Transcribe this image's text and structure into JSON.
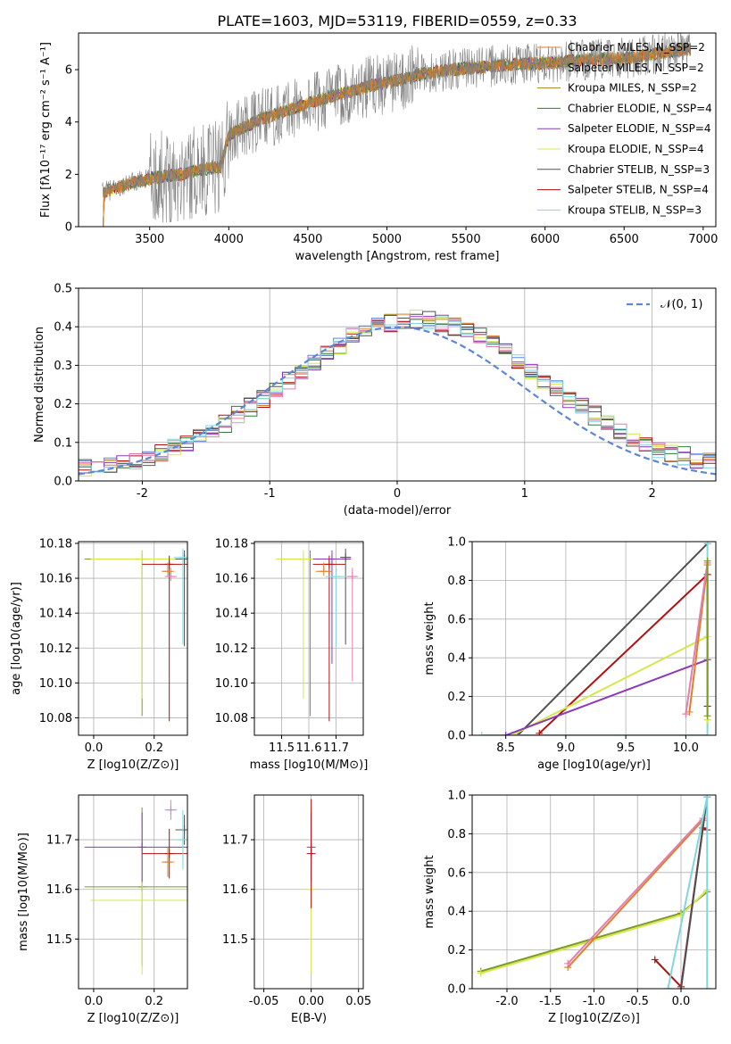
{
  "figure": {
    "title": "PLATE=1603, MJD=53119, FIBERID=0559, z=0.33"
  },
  "colors": {
    "grey": "#808080",
    "orange": "#e07f2a",
    "green_olive": "#7a9a2a",
    "dark_green": "#2e7d32",
    "purple": "#8a3ab9",
    "yellow": "#d4e84a",
    "dark_grey": "#505050",
    "red": "#b01010",
    "cyan": "#7fd6dc",
    "blue_dashed": "#5b87d6",
    "pink": "#e07fb0",
    "blue": "#5b87d6"
  },
  "chart_data": [
    {
      "id": "spectrum",
      "type": "line",
      "title": "PLATE=1603, MJD=53119, FIBERID=0559, z=0.33",
      "xlabel": "wavelength [Angstrom, rest frame]",
      "ylabel": "Flux [fλ10⁻¹⁷ erg cm⁻² s⁻¹ A⁻¹]",
      "xlim": [
        3050,
        7080
      ],
      "ylim": [
        0,
        7.4
      ],
      "xticks": [
        3500,
        4000,
        4500,
        5000,
        5500,
        6000,
        6500,
        7000
      ],
      "yticks": [
        0,
        2,
        4,
        6
      ],
      "grid": false,
      "legend_position": "top-right",
      "continuum_x": [
        3200,
        3400,
        3550,
        3700,
        3850,
        3950,
        4000,
        4200,
        4400,
        4600,
        4800,
        4900,
        5000,
        5200,
        5400,
        5600,
        5800,
        6000,
        6200,
        6400,
        6600,
        6800,
        6900
      ],
      "continuum_y": [
        1.3,
        1.7,
        1.9,
        2.0,
        2.2,
        2.3,
        3.5,
        4.1,
        4.5,
        4.9,
        5.2,
        5.4,
        5.5,
        5.8,
        6.0,
        6.1,
        6.2,
        6.25,
        6.35,
        6.4,
        6.5,
        6.7,
        6.8
      ],
      "series": [
        {
          "name": "Chabrier MILES, N$_{SSP}$=2",
          "color": "#e07f2a"
        },
        {
          "name": "Salpeter MILES, N$_{SSP}$=2",
          "color": "#e07f2a"
        },
        {
          "name": "Kroupa MILES, N$_{SSP}$=2",
          "color": "#a08020"
        },
        {
          "name": "Chabrier ELODIE, N$_{SSP}$=4",
          "color": "#2e7d32"
        },
        {
          "name": "Salpeter ELODIE, N$_{SSP}$=4",
          "color": "#8a3ab9"
        },
        {
          "name": "Kroupa ELODIE, N$_{SSP}$=4",
          "color": "#d4e84a"
        },
        {
          "name": "Chabrier STELIB, N$_{SSP}$=3",
          "color": "#505050"
        },
        {
          "name": "Salpeter STELIB, N$_{SSP}$=4",
          "color": "#b01010"
        },
        {
          "name": "Kroupa STELIB, N$_{SSP}$=3",
          "color": "#7fd6dc"
        }
      ],
      "legend_labels": [
        "Chabrier MILES, N_SSP=2",
        "Salpeter MILES, N_SSP=2",
        "Kroupa MILES, N_SSP=2",
        "Chabrier ELODIE, N_SSP=4",
        "Salpeter ELODIE, N_SSP=4",
        "Kroupa ELODIE, N_SSP=4",
        "Chabrier STELIB, N_SSP=3",
        "Salpeter STELIB, N_SSP=4",
        "Kroupa STELIB, N_SSP=3"
      ]
    },
    {
      "id": "residuals",
      "type": "line",
      "xlabel": "(data-model)/error",
      "ylabel": "Normed distribution",
      "xlim": [
        -2.5,
        2.5
      ],
      "ylim": [
        0,
        0.5
      ],
      "xticks": [
        -2,
        -1,
        0,
        1,
        2
      ],
      "yticks": [
        0.0,
        0.1,
        0.2,
        0.3,
        0.4,
        0.5
      ],
      "grid": true,
      "legend_position": "top-right",
      "legend": [
        "𝒩(0, 1)"
      ],
      "histogram_bin_width": 0.1,
      "histogram_series_colors": [
        "#5b87d6",
        "#e07f2a",
        "#2e7d32",
        "#b01010",
        "#8a3ab9",
        "#d4e84a",
        "#505050",
        "#e07fb0",
        "#7fd6dc"
      ]
    },
    {
      "id": "age-vs-Z",
      "type": "scatter",
      "xlabel": "Z [log10(Z/Z⊙)]",
      "ylabel": "age  [log10(age/yr)]",
      "xlim": [
        -0.05,
        0.31
      ],
      "ylim": [
        10.07,
        10.181
      ],
      "xticks": [
        0.0,
        0.2
      ],
      "yticks": [
        10.08,
        10.1,
        10.12,
        10.14,
        10.16,
        10.18
      ],
      "grid": true,
      "points": [
        {
          "x": 0.16,
          "y": 10.171,
          "xerr": 0.19,
          "yerr_lo": 0.09,
          "color": "#7a9a2a"
        },
        {
          "x": 0.16,
          "y": 10.171,
          "xerr": 0.17,
          "yerr_lo": 0.08,
          "color": "#d4e84a"
        },
        {
          "x": 0.25,
          "y": 10.168,
          "xerr": 0.09,
          "yerr_lo": 0.09,
          "color": "#b01010"
        },
        {
          "x": 0.245,
          "y": 10.164,
          "xerr": 0.02,
          "yerr_lo": 0.0,
          "color": "#e07f2a"
        },
        {
          "x": 0.255,
          "y": 10.161,
          "xerr": 0.02,
          "yerr_lo": 0.0,
          "color": "#e07fb0"
        },
        {
          "x": 0.3,
          "y": 10.171,
          "xerr": 0.03,
          "yerr_lo": 0.05,
          "color": "#505050"
        },
        {
          "x": 0.295,
          "y": 10.172,
          "xerr": 0.03,
          "yerr_lo": 0.05,
          "color": "#7fd6dc"
        }
      ]
    },
    {
      "id": "age-vs-mass",
      "type": "scatter",
      "xlabel": "mass [log10(M/M⊙)]",
      "ylim": [
        10.07,
        10.181
      ],
      "xlim": [
        11.4,
        11.8
      ],
      "xticks": [
        11.5,
        11.6,
        11.7
      ],
      "yticks": [
        10.08,
        10.1,
        10.12,
        10.14,
        10.16,
        10.18
      ],
      "grid": true,
      "points": [
        {
          "x": 11.605,
          "y": 10.171,
          "xerr": 0.1,
          "yerr_lo": 0.09,
          "color": "#7a9a2a"
        },
        {
          "x": 11.58,
          "y": 10.171,
          "xerr": 0.1,
          "yerr_lo": 0.08,
          "color": "#d4e84a"
        },
        {
          "x": 11.685,
          "y": 10.171,
          "xerr": 0.07,
          "yerr_lo": 0.06,
          "color": "#8a3ab9"
        },
        {
          "x": 11.675,
          "y": 10.168,
          "xerr": 0.06,
          "yerr_lo": 0.09,
          "color": "#b01010"
        },
        {
          "x": 11.655,
          "y": 10.164,
          "xerr": 0.03,
          "yerr_lo": 0.0,
          "color": "#e07f2a"
        },
        {
          "x": 11.735,
          "y": 10.172,
          "xerr": 0.02,
          "yerr_lo": 0.05,
          "color": "#505050"
        },
        {
          "x": 11.76,
          "y": 10.161,
          "xerr": 0.02,
          "yerr_lo": 0.06,
          "color": "#e07fb0"
        },
        {
          "x": 11.7,
          "y": 10.161,
          "xerr": 0.04,
          "yerr_lo": 0.04,
          "color": "#7fd6dc"
        }
      ]
    },
    {
      "id": "massweight-vs-age",
      "type": "line",
      "xlabel": "age  [log10(age/yr)]",
      "ylabel": "mass weight",
      "xlim": [
        8.22,
        10.25
      ],
      "ylim": [
        0,
        1.0
      ],
      "xticks": [
        8.5,
        9.0,
        9.5,
        10.0
      ],
      "yticks": [
        0.0,
        0.2,
        0.4,
        0.6,
        0.8,
        1.0
      ],
      "grid": true,
      "series": [
        {
          "color": "#505050",
          "x": [
            8.6,
            10.18
          ],
          "y": [
            0.0,
            0.99
          ]
        },
        {
          "color": "#7fd6dc",
          "x": [
            8.3,
            10.18,
            10.18
          ],
          "y": [
            0.0,
            0.0,
            0.99
          ]
        },
        {
          "color": "#b01010",
          "x": [
            8.78,
            10.18,
            10.18
          ],
          "y": [
            0.01,
            0.83,
            0.15
          ]
        },
        {
          "color": "#d4e84a",
          "x": [
            8.55,
            10.18,
            10.18
          ],
          "y": [
            0.0,
            0.51,
            0.08
          ]
        },
        {
          "color": "#8a3ab9",
          "x": [
            8.5,
            10.18
          ],
          "y": [
            0.0,
            0.39
          ]
        },
        {
          "color": "#e07f2a",
          "x": [
            10.03,
            10.18
          ],
          "y": [
            0.12,
            0.88
          ]
        },
        {
          "color": "#e07fb0",
          "x": [
            10.0,
            10.18
          ],
          "y": [
            0.11,
            0.89
          ]
        },
        {
          "color": "#7a9a2a",
          "x": [
            10.18,
            10.18
          ],
          "y": [
            0.1,
            0.9
          ]
        }
      ]
    },
    {
      "id": "mass-vs-Z",
      "type": "scatter",
      "xlabel": "Z [log10(Z/Z⊙)]",
      "ylabel": "mass [log10(M/M⊙)]",
      "xlim": [
        -0.05,
        0.31
      ],
      "ylim": [
        11.4,
        11.79
      ],
      "xticks": [
        0.0,
        0.2
      ],
      "yticks": [
        11.5,
        11.6,
        11.7
      ],
      "grid": true,
      "points": [
        {
          "x": 0.16,
          "y": 11.605,
          "xerr": 0.19,
          "yerr": 0.16,
          "color": "#7a9a2a"
        },
        {
          "x": 0.16,
          "y": 11.578,
          "xerr": 0.17,
          "yerr": 0.15,
          "color": "#d4e84a"
        },
        {
          "x": 0.16,
          "y": 11.685,
          "xerr": 0.19,
          "yerr": 0.07,
          "color": "#8a3ab9"
        },
        {
          "x": 0.25,
          "y": 11.672,
          "xerr": 0.09,
          "yerr": 0.05,
          "color": "#b01010"
        },
        {
          "x": 0.245,
          "y": 11.655,
          "xerr": 0.02,
          "yerr": 0.03,
          "color": "#e07f2a"
        },
        {
          "x": 0.255,
          "y": 11.76,
          "xerr": 0.02,
          "yerr": 0.02,
          "color": "#e07fb0"
        },
        {
          "x": 0.3,
          "y": 11.72,
          "xerr": 0.03,
          "yerr": 0.03,
          "color": "#505050"
        },
        {
          "x": 0.295,
          "y": 11.7,
          "xerr": 0.03,
          "yerr": 0.06,
          "color": "#7fd6dc"
        }
      ]
    },
    {
      "id": "mass-vs-ebv",
      "type": "scatter",
      "xlabel": "E(B-V)",
      "xlim": [
        -0.06,
        0.055
      ],
      "ylim": [
        11.4,
        11.79
      ],
      "xticks": [
        -0.05,
        0.0,
        0.05
      ],
      "yticks": [
        11.5,
        11.6,
        11.7
      ],
      "grid": true,
      "points": [
        {
          "x": 0.0,
          "y": 11.6,
          "yerr": 0.17,
          "color": "#d4e84a"
        },
        {
          "x": 0.0,
          "y": 11.685,
          "yerr": 0.07,
          "color": "#8a3ab9"
        },
        {
          "x": 0.0,
          "y": 11.672,
          "yerr": 0.11,
          "color": "#b01010"
        }
      ]
    },
    {
      "id": "massweight-vs-Z",
      "type": "line",
      "xlabel": "Z [log10(Z/Z⊙)]",
      "ylabel": "mass weight",
      "xlim": [
        -2.4,
        0.4
      ],
      "ylim": [
        0,
        1.0
      ],
      "xticks": [
        -2.0,
        -1.5,
        -1.0,
        -0.5,
        0.0
      ],
      "yticks": [
        0.0,
        0.2,
        0.4,
        0.6,
        0.8,
        1.0
      ],
      "grid": true,
      "series": [
        {
          "color": "#7a9a2a",
          "x": [
            -2.3,
            0.0,
            0.3
          ],
          "y": [
            0.09,
            0.39,
            0.5
          ]
        },
        {
          "color": "#d4e84a",
          "x": [
            -2.3,
            0.0,
            0.3
          ],
          "y": [
            0.08,
            0.38,
            0.51
          ]
        },
        {
          "color": "#e07f2a",
          "x": [
            -1.3,
            0.25
          ],
          "y": [
            0.11,
            0.87
          ]
        },
        {
          "color": "#e07fb0",
          "x": [
            -1.3,
            0.25
          ],
          "y": [
            0.13,
            0.88
          ]
        },
        {
          "color": "#b01010",
          "x": [
            -0.3,
            0.0,
            0.25,
            0.3
          ],
          "y": [
            0.15,
            0.01,
            0.83,
            0.82
          ]
        },
        {
          "color": "#505050",
          "x": [
            0.0,
            0.3
          ],
          "y": [
            0.0,
            0.99
          ]
        },
        {
          "color": "#7fd6dc",
          "x": [
            -0.15,
            0.3,
            0.3
          ],
          "y": [
            0.0,
            0.99,
            0.0
          ]
        }
      ]
    }
  ]
}
